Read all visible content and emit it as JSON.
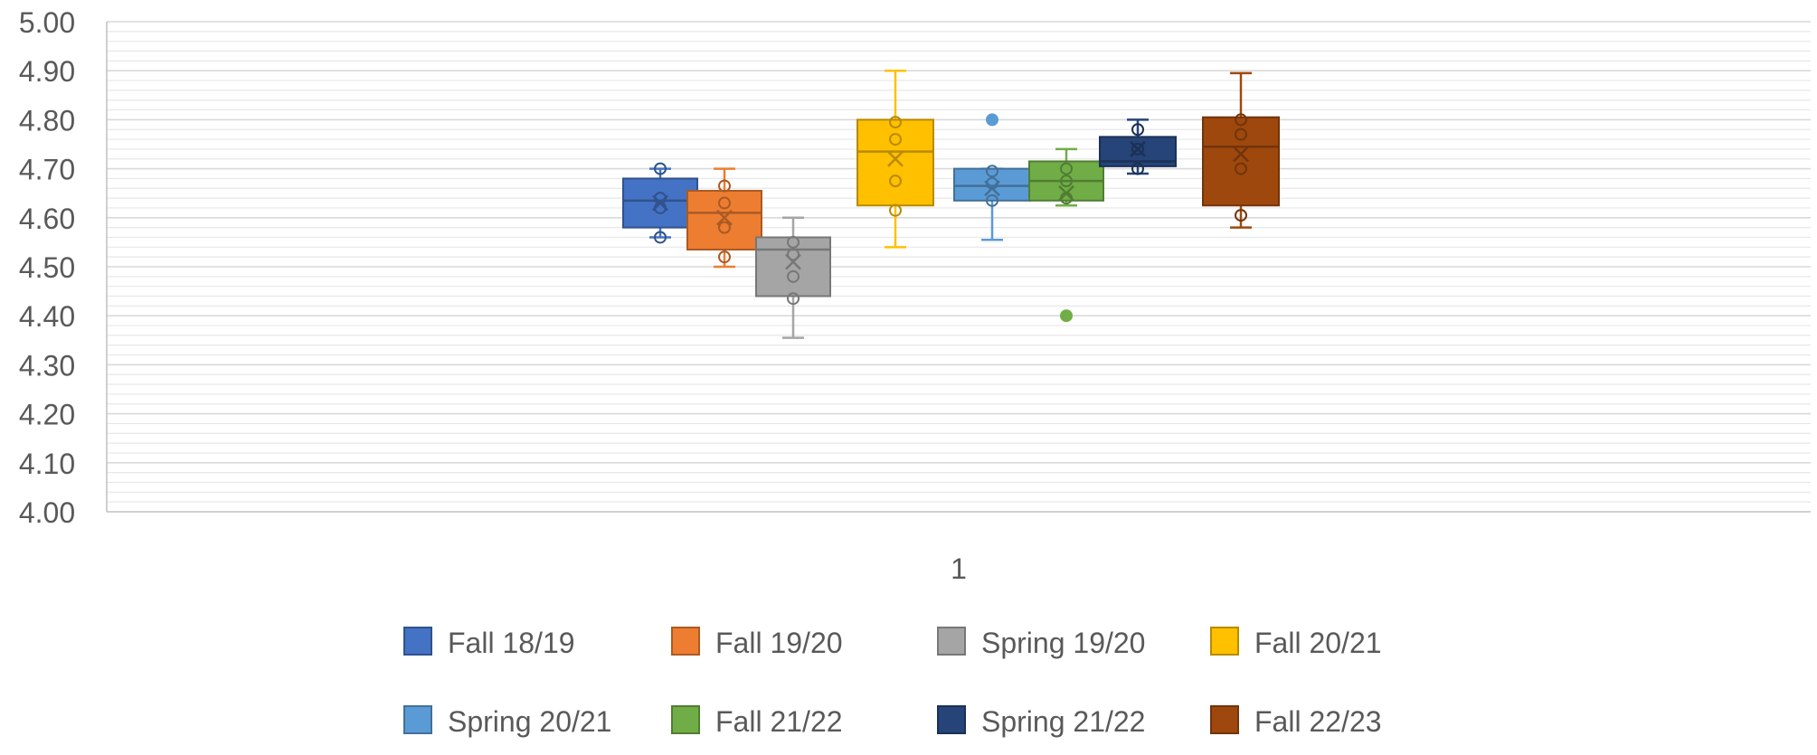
{
  "chart_data": {
    "type": "box",
    "title": "",
    "xlabel": "",
    "ylabel": "",
    "ylim": [
      4.0,
      5.0
    ],
    "yticks": [
      "4.00",
      "4.10",
      "4.20",
      "4.30",
      "4.40",
      "4.50",
      "4.60",
      "4.70",
      "4.80",
      "4.90",
      "5.00"
    ],
    "minor_grid_step": 0.02,
    "categories": [
      "1"
    ],
    "grid": true,
    "legend_position": "bottom",
    "series": [
      {
        "name": "Fall 18/19",
        "color": "#4472C4",
        "min": 4.56,
        "q1": 4.58,
        "median": 4.635,
        "q3": 4.68,
        "max": 4.7,
        "mean": 4.63,
        "points": [
          4.56,
          4.62,
          4.64,
          4.7
        ],
        "outliers": []
      },
      {
        "name": "Fall 19/20",
        "color": "#ED7D31",
        "min": 4.5,
        "q1": 4.535,
        "median": 4.61,
        "q3": 4.655,
        "max": 4.7,
        "mean": 4.6,
        "points": [
          4.52,
          4.58,
          4.63,
          4.665
        ],
        "outliers": []
      },
      {
        "name": "Spring 19/20",
        "color": "#A5A5A5",
        "min": 4.355,
        "q1": 4.44,
        "median": 4.535,
        "q3": 4.56,
        "max": 4.6,
        "mean": 4.51,
        "points": [
          4.435,
          4.48,
          4.525,
          4.55
        ],
        "outliers": []
      },
      {
        "name": "Fall 20/21",
        "color": "#FFC000",
        "min": 4.54,
        "q1": 4.625,
        "median": 4.735,
        "q3": 4.8,
        "max": 4.9,
        "mean": 4.72,
        "points": [
          4.615,
          4.675,
          4.76,
          4.795
        ],
        "outliers": []
      },
      {
        "name": "Spring 20/21",
        "color": "#5B9BD5",
        "min": 4.555,
        "q1": 4.635,
        "median": 4.665,
        "q3": 4.7,
        "max": 4.7,
        "mean": 4.66,
        "points": [
          4.635,
          4.67,
          4.695
        ],
        "outliers": [
          4.8
        ]
      },
      {
        "name": "Fall 21/22",
        "color": "#70AD47",
        "min": 4.625,
        "q1": 4.635,
        "median": 4.675,
        "q3": 4.715,
        "max": 4.74,
        "mean": 4.65,
        "points": [
          4.64,
          4.675,
          4.7
        ],
        "outliers": [
          4.4
        ]
      },
      {
        "name": "Spring 21/22",
        "color": "#264478",
        "min": 4.69,
        "q1": 4.705,
        "median": 4.715,
        "q3": 4.765,
        "max": 4.8,
        "mean": 4.74,
        "points": [
          4.7,
          4.74,
          4.78
        ],
        "outliers": []
      },
      {
        "name": "Fall 22/23",
        "color": "#9E480E",
        "min": 4.58,
        "q1": 4.625,
        "median": 4.745,
        "q3": 4.805,
        "max": 4.895,
        "mean": 4.73,
        "points": [
          4.605,
          4.7,
          4.77,
          4.8
        ],
        "outliers": []
      }
    ]
  }
}
